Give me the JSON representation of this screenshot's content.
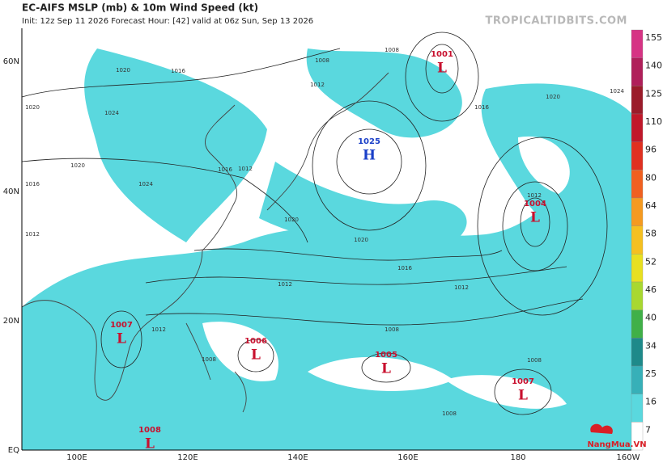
{
  "header": {
    "title": "EC-AIFS MSLP (mb) & 10m Wind Speed (kt)",
    "subtitle": "Init: 12z Sep 11 2026   Forecast Hour: [42]   valid at 06z Sun, Sep 13 2026",
    "watermark": "TROPICALTIDBITS.COM"
  },
  "map": {
    "lat_labels": [
      "60N",
      "40N",
      "20N",
      "EQ"
    ],
    "lon_labels": [
      "100E",
      "120E",
      "140E",
      "160E",
      "180",
      "160W"
    ],
    "centers": [
      {
        "pressure": "1001",
        "symbol": "L"
      },
      {
        "pressure": "1025",
        "symbol": "H"
      },
      {
        "pressure": "1004",
        "symbol": "L"
      },
      {
        "pressure": "1007",
        "symbol": "L"
      },
      {
        "pressure": "1006",
        "symbol": "L"
      },
      {
        "pressure": "1005",
        "symbol": "L"
      },
      {
        "pressure": "1007",
        "symbol": "L"
      },
      {
        "pressure": "1008",
        "symbol": "L"
      }
    ],
    "isobar_labels": [
      "1008",
      "1008",
      "1020",
      "1016",
      "1020",
      "1024",
      "1012",
      "1016",
      "1020",
      "1020",
      "1016",
      "1012",
      "1012",
      "1016",
      "1020",
      "1012",
      "1008",
      "1016",
      "1012",
      "1008",
      "1012",
      "1008",
      "1008",
      "1012",
      "1024",
      "1020",
      "1024"
    ]
  },
  "colorbar": {
    "labels": [
      "155",
      "140",
      "125",
      "110",
      "96",
      "80",
      "64",
      "58",
      "52",
      "46",
      "40",
      "34",
      "25",
      "16",
      "7"
    ]
  },
  "logo": "NangMua.VN"
}
